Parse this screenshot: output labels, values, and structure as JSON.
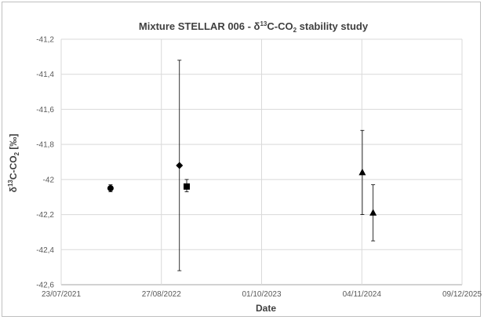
{
  "chart_data": {
    "type": "scatter",
    "title": {
      "prefix": "Mixture STELLAR 006  - δ",
      "sup": "13",
      "middle": "C-CO",
      "sub": "2",
      "suffix": " stability study"
    },
    "xlabel": "Date",
    "ylabel": {
      "prefix": "δ",
      "sup": "13",
      "middle": "C-CO",
      "sub": "2",
      "suffix": " [‰]"
    },
    "x_axis": {
      "type": "date",
      "min": "2021-07-23",
      "max": "2025-12-09",
      "ticks": [
        "2021-07-23",
        "2022-08-27",
        "2023-10-01",
        "2024-11-04",
        "2025-12-09"
      ],
      "tick_labels": [
        "23/07/2021",
        "27/08/2022",
        "01/10/2023",
        "04/11/2024",
        "09/12/2025"
      ]
    },
    "y_axis": {
      "min": -42.6,
      "max": -41.2,
      "ticks": [
        -42.6,
        -42.4,
        -42.2,
        -42.0,
        -41.8,
        -41.6,
        -41.4,
        -41.2
      ],
      "tick_labels": [
        "-42,6",
        "-42,4",
        "-42,2",
        "-42",
        "-41,8",
        "-41,6",
        "-41,4",
        "-41,2"
      ]
    },
    "grid": true,
    "series": [
      {
        "marker": "circle",
        "color": "#000000",
        "points": [
          {
            "x": "2022-02-05",
            "y": -42.05,
            "err_low": -42.07,
            "err_high": -42.03
          }
        ]
      },
      {
        "marker": "diamond",
        "color": "#000000",
        "points": [
          {
            "x": "2022-11-07",
            "y": -41.92,
            "err_low": -42.52,
            "err_high": -41.32
          }
        ]
      },
      {
        "marker": "square",
        "color": "#000000",
        "points": [
          {
            "x": "2022-12-06",
            "y": -42.04,
            "err_low": -42.07,
            "err_high": -42.0
          }
        ]
      },
      {
        "marker": "triangle",
        "color": "#000000",
        "points": [
          {
            "x": "2024-11-06",
            "y": -41.96,
            "err_low": -42.2,
            "err_high": -41.72
          },
          {
            "x": "2024-12-19",
            "y": -42.19,
            "err_low": -42.35,
            "err_high": -42.03
          }
        ]
      }
    ]
  }
}
